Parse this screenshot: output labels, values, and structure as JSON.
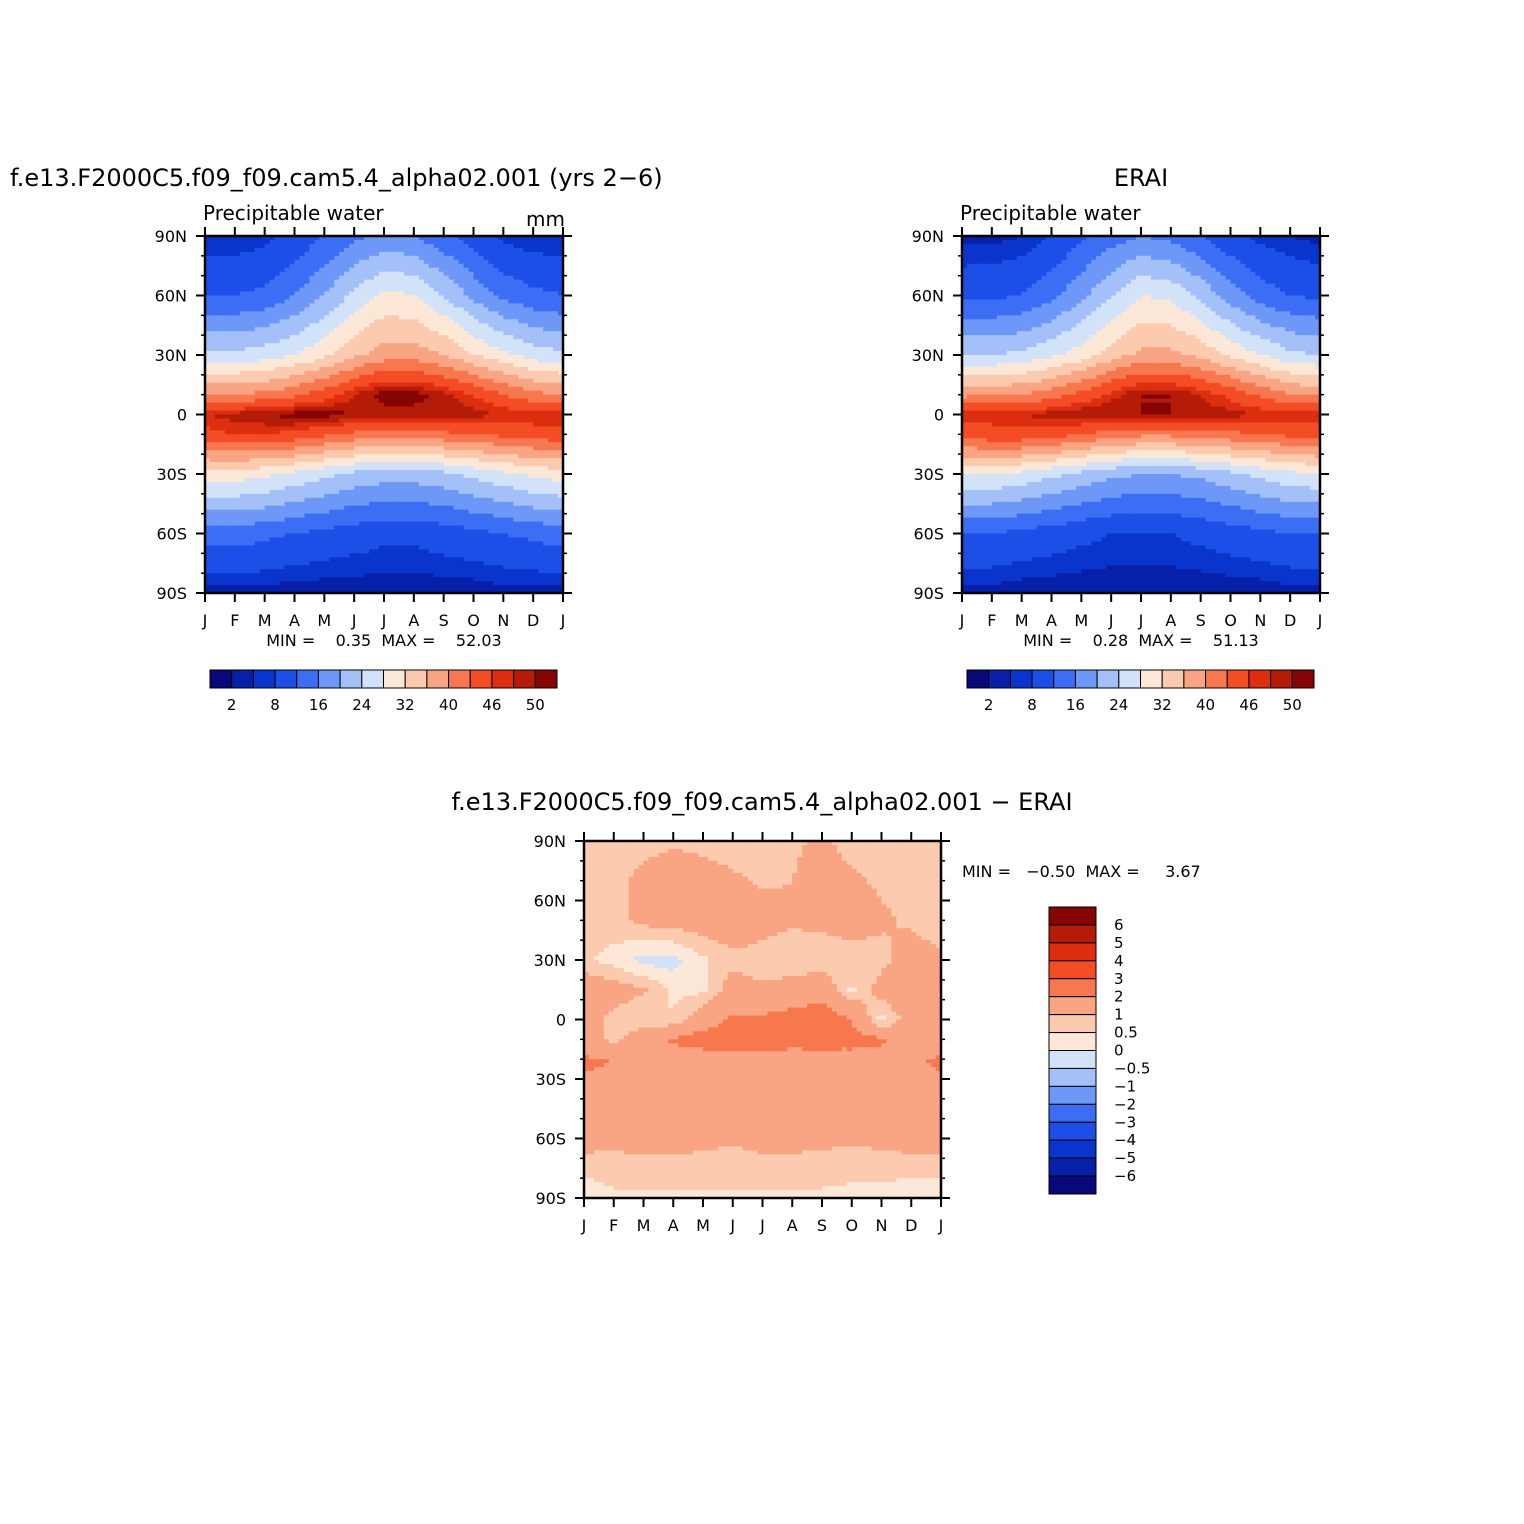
{
  "chart_data": [
    {
      "type": "heatmap",
      "id": "model",
      "title": "f.e13.F2000C5.f09_f09.cam5.4_alpha02.001 (yrs 2−6)",
      "subtitle_left": "Precipitable water",
      "subtitle_right": "mm",
      "x_tick_labels": [
        "J",
        "F",
        "M",
        "A",
        "M",
        "J",
        "J",
        "A",
        "S",
        "O",
        "N",
        "D",
        "J"
      ],
      "y_tick_labels": [
        "90N",
        "60N",
        "30N",
        "0",
        "30S",
        "60S",
        "90S"
      ],
      "ylim": [
        -90,
        90
      ],
      "stats_text": "MIN =    0.35  MAX =    52.03",
      "min": 0.35,
      "max": 52.03,
      "colorbar_labels": [
        "2",
        "8",
        "16",
        "24",
        "32",
        "40",
        "46",
        "50"
      ],
      "field": {
        "lats": [
          90,
          60,
          30,
          10,
          0,
          -10,
          -30,
          -60,
          -90
        ],
        "rows": [
          [
            2,
            2,
            3,
            5,
            8,
            11,
            13,
            12,
            9,
            6,
            3,
            2,
            2
          ],
          [
            8,
            8,
            9,
            12,
            16,
            21,
            25,
            24,
            20,
            15,
            11,
            9,
            8
          ],
          [
            21,
            21,
            22,
            24,
            27,
            31,
            34,
            34,
            32,
            28,
            25,
            22,
            21
          ],
          [
            36,
            36,
            37,
            39,
            42,
            46,
            49,
            49,
            47,
            44,
            40,
            37,
            36
          ],
          [
            46,
            47,
            48,
            49,
            49,
            48,
            47,
            47,
            47,
            47,
            46,
            46,
            46
          ],
          [
            43,
            44,
            44,
            43,
            41,
            39,
            38,
            38,
            39,
            40,
            41,
            42,
            43
          ],
          [
            26,
            26,
            25,
            23,
            21,
            19,
            18,
            18,
            19,
            21,
            23,
            25,
            26
          ],
          [
            10,
            10,
            9,
            8,
            7,
            6,
            5,
            5,
            6,
            7,
            8,
            9,
            10
          ],
          [
            1,
            1,
            1,
            0.5,
            0.4,
            0.4,
            0.4,
            0.4,
            0.4,
            0.5,
            1,
            1,
            1
          ]
        ]
      }
    },
    {
      "type": "heatmap",
      "id": "obs",
      "title": "ERAI",
      "subtitle_left": "Precipitable water",
      "x_tick_labels": [
        "J",
        "F",
        "M",
        "A",
        "M",
        "J",
        "J",
        "A",
        "S",
        "O",
        "N",
        "D",
        "J"
      ],
      "y_tick_labels": [
        "90N",
        "60N",
        "30N",
        "0",
        "30S",
        "60S",
        "90S"
      ],
      "ylim": [
        -90,
        90
      ],
      "stats_text": "MIN =    0.28  MAX =    51.13",
      "min": 0.28,
      "max": 51.13,
      "colorbar_labels": [
        "2",
        "8",
        "16",
        "24",
        "32",
        "40",
        "46",
        "50"
      ],
      "field": {
        "lats": [
          90,
          60,
          30,
          10,
          0,
          -10,
          -30,
          -60,
          -90
        ],
        "rows": [
          [
            1,
            1,
            2,
            4,
            7,
            10,
            12,
            11,
            8,
            5,
            3,
            2,
            1
          ],
          [
            7,
            7,
            8,
            11,
            15,
            20,
            24,
            23,
            19,
            14,
            10,
            8,
            7
          ],
          [
            20,
            20,
            21,
            23,
            26,
            30,
            33,
            33,
            31,
            27,
            24,
            21,
            20
          ],
          [
            35,
            35,
            36,
            38,
            41,
            45,
            48,
            48,
            46,
            43,
            39,
            36,
            35
          ],
          [
            45,
            45,
            46,
            47,
            48,
            48,
            48,
            48,
            47,
            47,
            46,
            46,
            45
          ],
          [
            42,
            43,
            43,
            42,
            40,
            38,
            37,
            37,
            38,
            39,
            40,
            41,
            42
          ],
          [
            24,
            24,
            23,
            21,
            19,
            17,
            16,
            16,
            17,
            19,
            21,
            23,
            24
          ],
          [
            8,
            8,
            7,
            6,
            5,
            4,
            4,
            4,
            5,
            6,
            7,
            8,
            8
          ],
          [
            1,
            1,
            0.5,
            0.4,
            0.3,
            0.3,
            0.3,
            0.3,
            0.3,
            0.4,
            0.5,
            1,
            1
          ]
        ]
      }
    },
    {
      "type": "heatmap",
      "id": "diff",
      "title": "f.e13.F2000C5.f09_f09.cam5.4_alpha02.001 − ERAI",
      "x_tick_labels": [
        "J",
        "F",
        "M",
        "A",
        "M",
        "J",
        "J",
        "A",
        "S",
        "O",
        "N",
        "D",
        "J"
      ],
      "y_tick_labels": [
        "90N",
        "60N",
        "30N",
        "0",
        "30S",
        "60S",
        "90S"
      ],
      "ylim": [
        -90,
        90
      ],
      "stats_text": "MIN =   −0.50  MAX =     3.67",
      "min": -0.5,
      "max": 3.67,
      "colorbar_labels": [
        "6",
        "5",
        "4",
        "3",
        "2",
        "1",
        "0.5",
        "0",
        "−0.5",
        "−1",
        "−2",
        "−3",
        "−4",
        "−5",
        "−6"
      ],
      "field": {
        "lats": [
          90,
          70,
          50,
          30,
          15,
          0,
          -10,
          -20,
          -40,
          -60,
          -75,
          -90
        ],
        "rows": [
          [
            0.8,
            0.7,
            0.8,
            0.9,
            0.8,
            0.7,
            0.8,
            0.9,
            1.1,
            0.8,
            0.7,
            0.6,
            0.8
          ],
          [
            0.9,
            0.8,
            1.2,
            1.4,
            1.3,
            1.1,
            0.9,
            1.0,
            1.3,
            1.1,
            0.9,
            0.8,
            0.9
          ],
          [
            0.7,
            0.8,
            1.2,
            1.3,
            1.4,
            1.6,
            1.3,
            1.1,
            1.2,
            1.3,
            1.1,
            0.9,
            0.7
          ],
          [
            0.6,
            0.3,
            -0.2,
            -0.2,
            0.4,
            0.8,
            0.7,
            0.6,
            0.6,
            0.7,
            0.8,
            1.3,
            1.1
          ],
          [
            1.6,
            1.3,
            1.1,
            0.3,
            0.4,
            1.4,
            1.1,
            1.3,
            1.6,
            0.4,
            1.3,
            1.8,
            1.6
          ],
          [
            1.4,
            0.8,
            0.5,
            0.6,
            1.5,
            2.1,
            2.2,
            2.4,
            2.6,
            2.0,
            0.3,
            1.4,
            1.4
          ],
          [
            1.3,
            0.8,
            1.6,
            2.1,
            2.4,
            2.6,
            2.2,
            2.3,
            2.4,
            2.3,
            2.1,
            1.6,
            1.3
          ],
          [
            2.1,
            2.0,
            1.8,
            1.7,
            1.6,
            1.7,
            1.8,
            1.7,
            1.6,
            1.7,
            1.8,
            1.9,
            2.1
          ],
          [
            1.8,
            1.8,
            1.7,
            1.7,
            1.7,
            1.7,
            1.7,
            1.7,
            1.7,
            1.7,
            1.7,
            1.8,
            1.8
          ],
          [
            1.3,
            1.2,
            1.3,
            1.4,
            1.2,
            1.1,
            1.2,
            1.3,
            1.2,
            1.1,
            1.2,
            1.3,
            1.3
          ],
          [
            0.7,
            0.7,
            0.8,
            0.7,
            0.7,
            0.7,
            0.8,
            0.7,
            0.7,
            0.6,
            0.7,
            0.7,
            0.7
          ],
          [
            0.1,
            0.4,
            0.4,
            0.4,
            0.4,
            0.4,
            0.4,
            0.4,
            0.4,
            0.4,
            0.3,
            0.1,
            0.1
          ]
        ]
      }
    }
  ],
  "colors": {
    "pw_levels": [
      0,
      2,
      4,
      8,
      12,
      16,
      20,
      24,
      28,
      32,
      36,
      40,
      44,
      46,
      48,
      50
    ],
    "pw_palette": [
      "#07087a",
      "#0720aa",
      "#0a35cc",
      "#1c4ee8",
      "#3c6ef5",
      "#6e98f8",
      "#a4c0f8",
      "#d2e3f9",
      "#fde8d8",
      "#fccaaf",
      "#f9a583",
      "#f7784e",
      "#f44c25",
      "#dd2e10",
      "#b51c08",
      "#870404"
    ],
    "diff_levels": [
      -6,
      -5,
      -4,
      -3,
      -2,
      -1,
      -0.5,
      0,
      0.5,
      1,
      2,
      3,
      4,
      5,
      6
    ],
    "diff_palette": [
      "#07087a",
      "#0720aa",
      "#0a35cc",
      "#1c4ee8",
      "#3c6ef5",
      "#6e98f8",
      "#a4c0f8",
      "#d2e3f9",
      "#fde8d8",
      "#fccaaf",
      "#f9a583",
      "#f7784e",
      "#f44c25",
      "#dd2e10",
      "#b51c08",
      "#870404"
    ]
  }
}
